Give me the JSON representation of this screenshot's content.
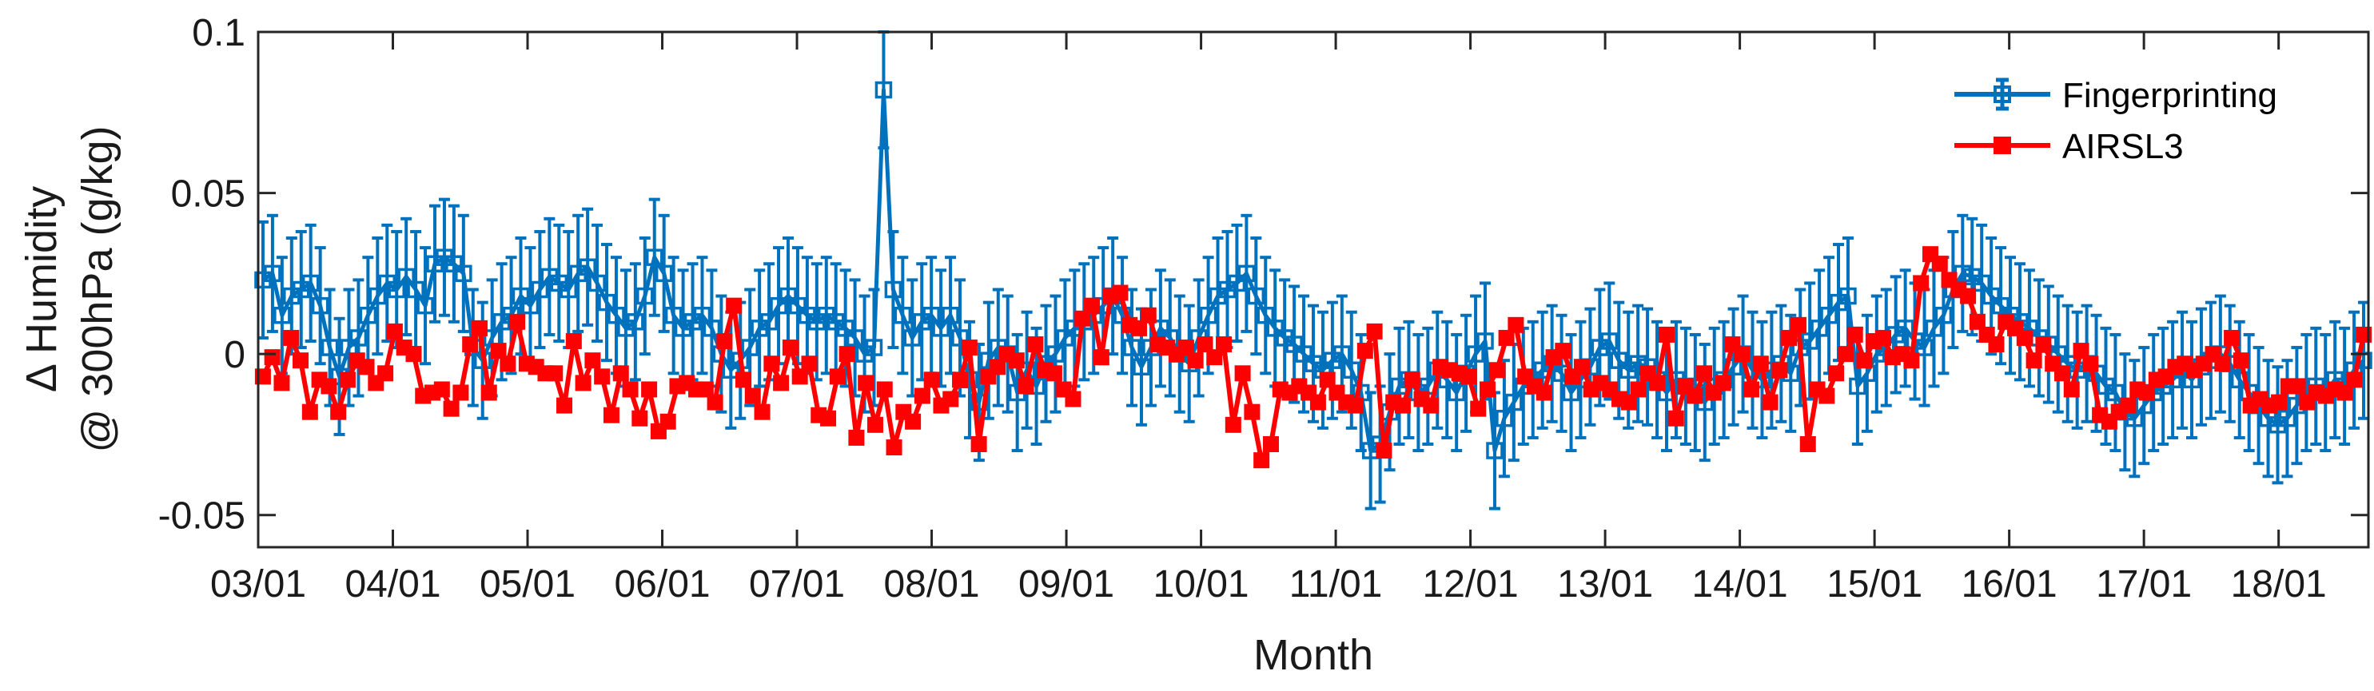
{
  "chart_data": {
    "type": "line",
    "title": "",
    "xlabel": "Month",
    "ylabel_line1": "Δ Humidity",
    "ylabel_line2": "@ 300hPa (g/kg)",
    "ylim": [
      -0.06,
      0.1
    ],
    "yticks": [
      -0.05,
      0,
      0.05,
      0.1
    ],
    "ytick_labels": [
      "-0.05",
      "0",
      "0.05",
      "0.1"
    ],
    "xlim_months": [
      0,
      188
    ],
    "xtick_positions_months": [
      0,
      12,
      24,
      36,
      48,
      60,
      72,
      84,
      96,
      108,
      120,
      132,
      144,
      156,
      168,
      180
    ],
    "xtick_labels": [
      "03/01",
      "04/01",
      "05/01",
      "06/01",
      "07/01",
      "08/01",
      "09/01",
      "10/01",
      "11/01",
      "12/01",
      "13/01",
      "14/01",
      "15/01",
      "16/01",
      "17/01",
      "18/01"
    ],
    "legend_position": "top-right",
    "series": [
      {
        "name": "Fingerprinting",
        "color": "#0072BD",
        "marker": "square-open",
        "error_bar": 0.018,
        "values": [
          0.023,
          0.025,
          0.012,
          0.018,
          0.02,
          0.022,
          0.015,
          0.002,
          -0.007,
          0.002,
          0.005,
          0.012,
          0.018,
          0.022,
          0.02,
          0.024,
          0.02,
          0.015,
          0.028,
          0.03,
          0.028,
          0.025,
          0.002,
          -0.002,
          0.005,
          0.01,
          0.012,
          0.018,
          0.015,
          0.02,
          0.024,
          0.022,
          0.02,
          0.025,
          0.027,
          0.022,
          0.016,
          0.012,
          0.008,
          0.01,
          0.018,
          0.03,
          0.025,
          0.012,
          0.008,
          0.01,
          0.012,
          0.008,
          0.0,
          -0.005,
          -0.002,
          0.002,
          0.008,
          0.01,
          0.015,
          0.018,
          0.015,
          0.012,
          0.01,
          0.012,
          0.01,
          0.008,
          0.005,
          0.0,
          0.002,
          0.082,
          0.02,
          0.012,
          0.005,
          0.01,
          0.012,
          0.008,
          0.012,
          0.005,
          -0.008,
          -0.015,
          -0.002,
          0.002,
          0.0,
          -0.012,
          -0.005,
          -0.01,
          -0.003,
          0.0,
          0.005,
          0.008,
          0.01,
          0.012,
          0.015,
          0.018,
          0.012,
          0.002,
          -0.004,
          0.002,
          0.008,
          0.005,
          0.0,
          -0.003,
          0.005,
          0.012,
          0.018,
          0.02,
          0.022,
          0.025,
          0.018,
          0.012,
          0.008,
          0.005,
          0.003,
          0.0,
          -0.003,
          -0.005,
          -0.002,
          0.0,
          -0.005,
          -0.012,
          -0.03,
          -0.028,
          -0.018,
          -0.01,
          -0.008,
          -0.012,
          -0.01,
          -0.005,
          -0.008,
          -0.012,
          -0.006,
          0.0,
          0.004,
          -0.03,
          -0.02,
          -0.015,
          -0.01,
          -0.008,
          -0.005,
          -0.003,
          -0.006,
          -0.012,
          -0.008,
          -0.004,
          0.002,
          0.004,
          -0.002,
          -0.005,
          -0.003,
          -0.004,
          -0.008,
          -0.012,
          -0.008,
          -0.01,
          -0.012,
          -0.015,
          -0.01,
          -0.008,
          -0.004,
          0.0,
          -0.005,
          -0.008,
          -0.005,
          -0.003,
          -0.006,
          0.002,
          0.004,
          0.008,
          0.012,
          0.016,
          0.018,
          -0.01,
          -0.006,
          0.0,
          0.002,
          0.006,
          0.008,
          0.004,
          0.002,
          0.008,
          0.012,
          0.02,
          0.025,
          0.024,
          0.022,
          0.018,
          0.015,
          0.012,
          0.01,
          0.008,
          0.005,
          0.003,
          0.0,
          -0.003,
          -0.005,
          -0.003,
          -0.006,
          -0.01,
          -0.012,
          -0.018,
          -0.02,
          -0.016,
          -0.012,
          -0.01,
          -0.008,
          -0.005,
          -0.008,
          -0.004,
          -0.002,
          0.0,
          -0.003,
          -0.008,
          -0.012,
          -0.016,
          -0.02,
          -0.022,
          -0.02,
          -0.016,
          -0.012,
          -0.01,
          -0.012,
          -0.008,
          -0.01,
          -0.005,
          -0.002
        ]
      },
      {
        "name": "AIRSL3",
        "color": "#FF0000",
        "marker": "square-filled",
        "values": [
          -0.007,
          -0.001,
          -0.009,
          0.005,
          -0.002,
          -0.018,
          -0.008,
          -0.01,
          -0.018,
          -0.008,
          -0.002,
          -0.004,
          -0.009,
          -0.006,
          0.007,
          0.002,
          0.0,
          -0.013,
          -0.012,
          -0.011,
          -0.017,
          -0.012,
          0.003,
          0.008,
          -0.012,
          0.001,
          -0.003,
          0.01,
          -0.003,
          -0.004,
          -0.006,
          -0.006,
          -0.016,
          0.004,
          -0.009,
          -0.002,
          -0.007,
          -0.019,
          -0.006,
          -0.011,
          -0.02,
          -0.011,
          -0.024,
          -0.021,
          -0.01,
          -0.009,
          -0.011,
          -0.011,
          -0.015,
          0.004,
          0.015,
          -0.008,
          -0.013,
          -0.018,
          -0.003,
          -0.009,
          0.002,
          -0.007,
          -0.003,
          -0.019,
          -0.02,
          -0.007,
          0.0,
          -0.026,
          -0.009,
          -0.022,
          -0.011,
          -0.029,
          -0.018,
          -0.021,
          -0.013,
          -0.008,
          -0.016,
          -0.014,
          -0.008,
          0.002,
          -0.028,
          -0.007,
          -0.004,
          0.0,
          -0.002,
          -0.01,
          0.003,
          -0.005,
          -0.006,
          -0.011,
          -0.014,
          0.011,
          0.015,
          -0.001,
          0.018,
          0.019,
          0.009,
          0.008,
          0.012,
          0.003,
          0.002,
          0.0,
          0.002,
          -0.002,
          0.003,
          -0.001,
          0.003,
          -0.022,
          -0.006,
          -0.018,
          -0.033,
          -0.028,
          -0.011,
          -0.012,
          -0.01,
          -0.012,
          -0.015,
          -0.008,
          -0.012,
          -0.015,
          -0.016,
          0.001,
          0.007,
          -0.03,
          -0.015,
          -0.016,
          -0.008,
          -0.014,
          -0.016,
          -0.004,
          -0.005,
          -0.006,
          -0.007,
          -0.017,
          -0.011,
          -0.005,
          0.005,
          0.009,
          -0.007,
          -0.01,
          -0.012,
          -0.001,
          0.001,
          -0.007,
          -0.004,
          -0.011,
          -0.009,
          -0.011,
          -0.014,
          -0.015,
          -0.011,
          -0.006,
          -0.009,
          0.006,
          -0.02,
          -0.01,
          -0.013,
          -0.006,
          -0.012,
          -0.009,
          0.003,
          0.0,
          -0.011,
          -0.003,
          -0.015,
          -0.005,
          0.005,
          0.009,
          -0.028,
          -0.011,
          -0.013,
          -0.006,
          0.0,
          0.006,
          -0.002,
          0.004,
          0.005,
          -0.001,
          0.0,
          -0.002,
          0.022,
          0.031,
          0.028,
          0.023,
          0.02,
          0.018,
          0.01,
          0.006,
          0.003,
          0.01,
          0.008,
          0.005,
          -0.002,
          0.003,
          -0.003,
          -0.006,
          -0.011,
          0.001,
          -0.003,
          -0.019,
          -0.021,
          -0.018,
          -0.016,
          -0.011,
          -0.012,
          -0.008,
          -0.007,
          -0.004,
          -0.003,
          -0.005,
          -0.003,
          0.0,
          -0.003,
          0.005,
          -0.002,
          -0.016,
          -0.014,
          -0.016,
          -0.015,
          -0.01,
          -0.01,
          -0.015,
          -0.012,
          -0.013,
          -0.011,
          -0.012,
          -0.008,
          0.006
        ]
      }
    ]
  }
}
